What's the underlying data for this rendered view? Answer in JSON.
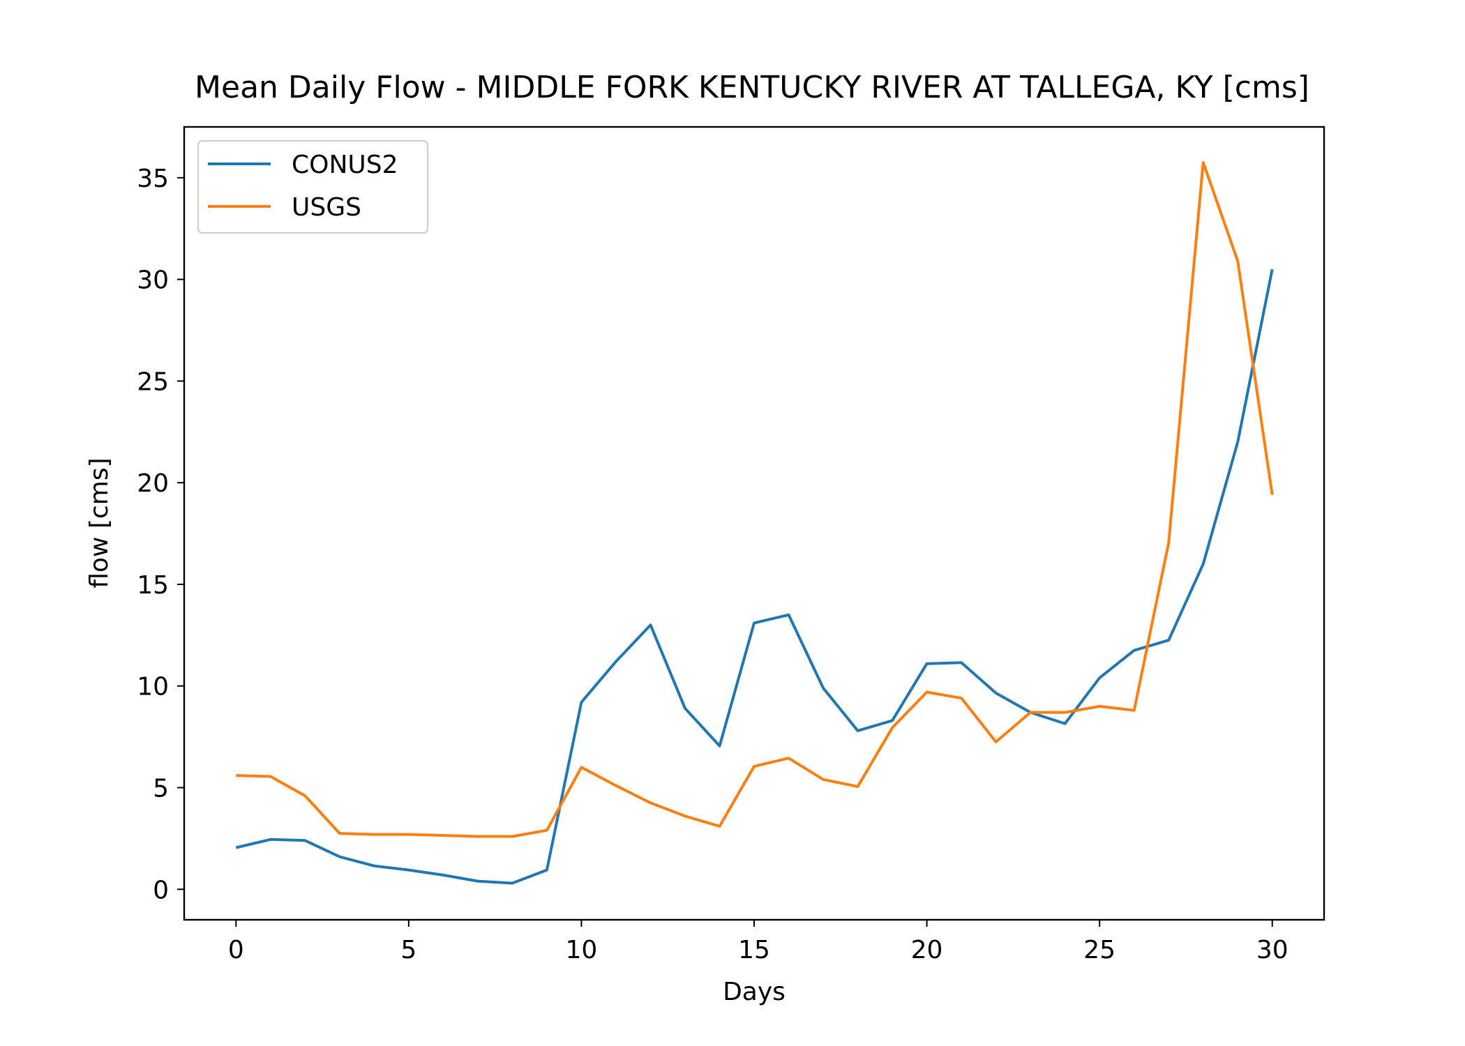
{
  "chart_data": {
    "type": "line",
    "title": "Mean Daily Flow - MIDDLE FORK KENTUCKY RIVER AT TALLEGA, KY [cms]",
    "xlabel": "Days",
    "ylabel": "flow [cms]",
    "xlim": [
      -1.5,
      31.5
    ],
    "ylim": [
      -1.5,
      37.5
    ],
    "x_ticks": [
      0,
      5,
      10,
      15,
      20,
      25,
      30
    ],
    "y_ticks": [
      0,
      5,
      10,
      15,
      20,
      25,
      30,
      35
    ],
    "grid": false,
    "legend_position": "upper left",
    "x": [
      0,
      1,
      2,
      3,
      4,
      5,
      6,
      7,
      8,
      9,
      10,
      11,
      12,
      13,
      14,
      15,
      16,
      17,
      18,
      19,
      20,
      21,
      22,
      23,
      24,
      25,
      26,
      27,
      28,
      29,
      30
    ],
    "series": [
      {
        "name": "CONUS2",
        "color": "#1f77b4",
        "values": [
          2.05,
          2.45,
          2.4,
          1.6,
          1.15,
          0.95,
          0.7,
          0.4,
          0.3,
          0.95,
          9.2,
          11.2,
          13.0,
          8.9,
          7.05,
          13.1,
          13.5,
          9.9,
          7.8,
          8.3,
          11.1,
          11.15,
          9.65,
          8.7,
          8.15,
          10.4,
          11.75,
          12.25,
          16.0,
          22.0,
          30.5
        ]
      },
      {
        "name": "USGS",
        "color": "#ff7f0e",
        "values": [
          5.6,
          5.55,
          4.6,
          2.75,
          2.7,
          2.7,
          2.65,
          2.6,
          2.6,
          2.9,
          6.0,
          5.1,
          4.25,
          3.6,
          3.1,
          6.05,
          6.45,
          5.4,
          5.05,
          7.95,
          9.7,
          9.4,
          7.25,
          8.7,
          8.7,
          9.0,
          8.8,
          17.05,
          35.75,
          30.9,
          19.4
        ]
      }
    ]
  }
}
